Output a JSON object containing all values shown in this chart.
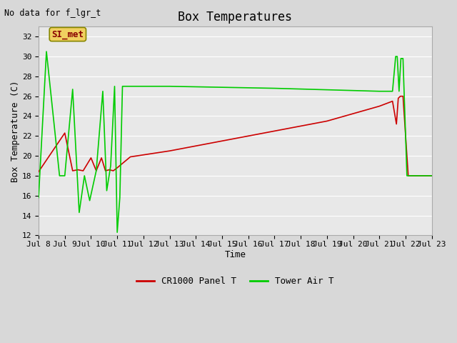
{
  "title": "Box Temperatures",
  "xlabel": "Time",
  "ylabel": "Box Temperature (C)",
  "top_left_text": "No data for f_lgr_t",
  "annotation_label": "SI_met",
  "ylim": [
    12,
    33
  ],
  "yticks": [
    12,
    14,
    16,
    18,
    20,
    22,
    24,
    26,
    28,
    30,
    32
  ],
  "x_tick_labels": [
    "Jul 8",
    "Jul 9",
    "Jul 10",
    "Jul 11",
    "Jul 12",
    "Jul 13",
    "Jul 14",
    "Jul 15",
    "Jul 16",
    "Jul 17",
    "Jul 18",
    "Jul 19",
    "Jul 20",
    "Jul 21",
    "Jul 22",
    "Jul 23"
  ],
  "background_color": "#d8d8d8",
  "plot_bg_color": "#e8e8e8",
  "grid_color": "#ffffff",
  "red_color": "#cc0000",
  "green_color": "#00cc00",
  "red_line_x": [
    0,
    1.0,
    1.3,
    1.5,
    1.7,
    2.0,
    2.2,
    2.4,
    2.55,
    2.7,
    2.85,
    3.0,
    3.5,
    5.0,
    7.0,
    9.0,
    11.0,
    13.0,
    13.5,
    13.65,
    13.72,
    13.8,
    13.9,
    14.1,
    15.0
  ],
  "red_line_y": [
    18.4,
    22.3,
    18.5,
    18.6,
    18.5,
    19.8,
    18.5,
    19.8,
    18.5,
    18.6,
    18.5,
    18.8,
    19.9,
    20.5,
    21.5,
    22.5,
    23.5,
    25.0,
    25.5,
    23.2,
    25.8,
    26.0,
    26.0,
    18.0,
    18.0
  ],
  "green_line_x": [
    0,
    0.3,
    0.8,
    1.0,
    1.3,
    1.55,
    1.75,
    1.95,
    2.2,
    2.45,
    2.6,
    2.75,
    2.9,
    3.0,
    3.1,
    3.2,
    3.5,
    5.0,
    9.0,
    13.0,
    13.5,
    13.62,
    13.68,
    13.75,
    13.82,
    13.9,
    14.05,
    14.15,
    15.0
  ],
  "green_line_y": [
    15.8,
    30.5,
    18.0,
    18.0,
    26.7,
    14.3,
    18.0,
    15.5,
    18.5,
    26.5,
    16.5,
    19.0,
    27.0,
    12.3,
    15.8,
    27.0,
    27.0,
    27.0,
    26.8,
    26.5,
    26.5,
    30.0,
    30.0,
    26.5,
    29.8,
    29.8,
    18.0,
    18.0,
    18.0
  ],
  "legend_red_label": "CR1000 Panel T",
  "legend_green_label": "Tower Air T"
}
